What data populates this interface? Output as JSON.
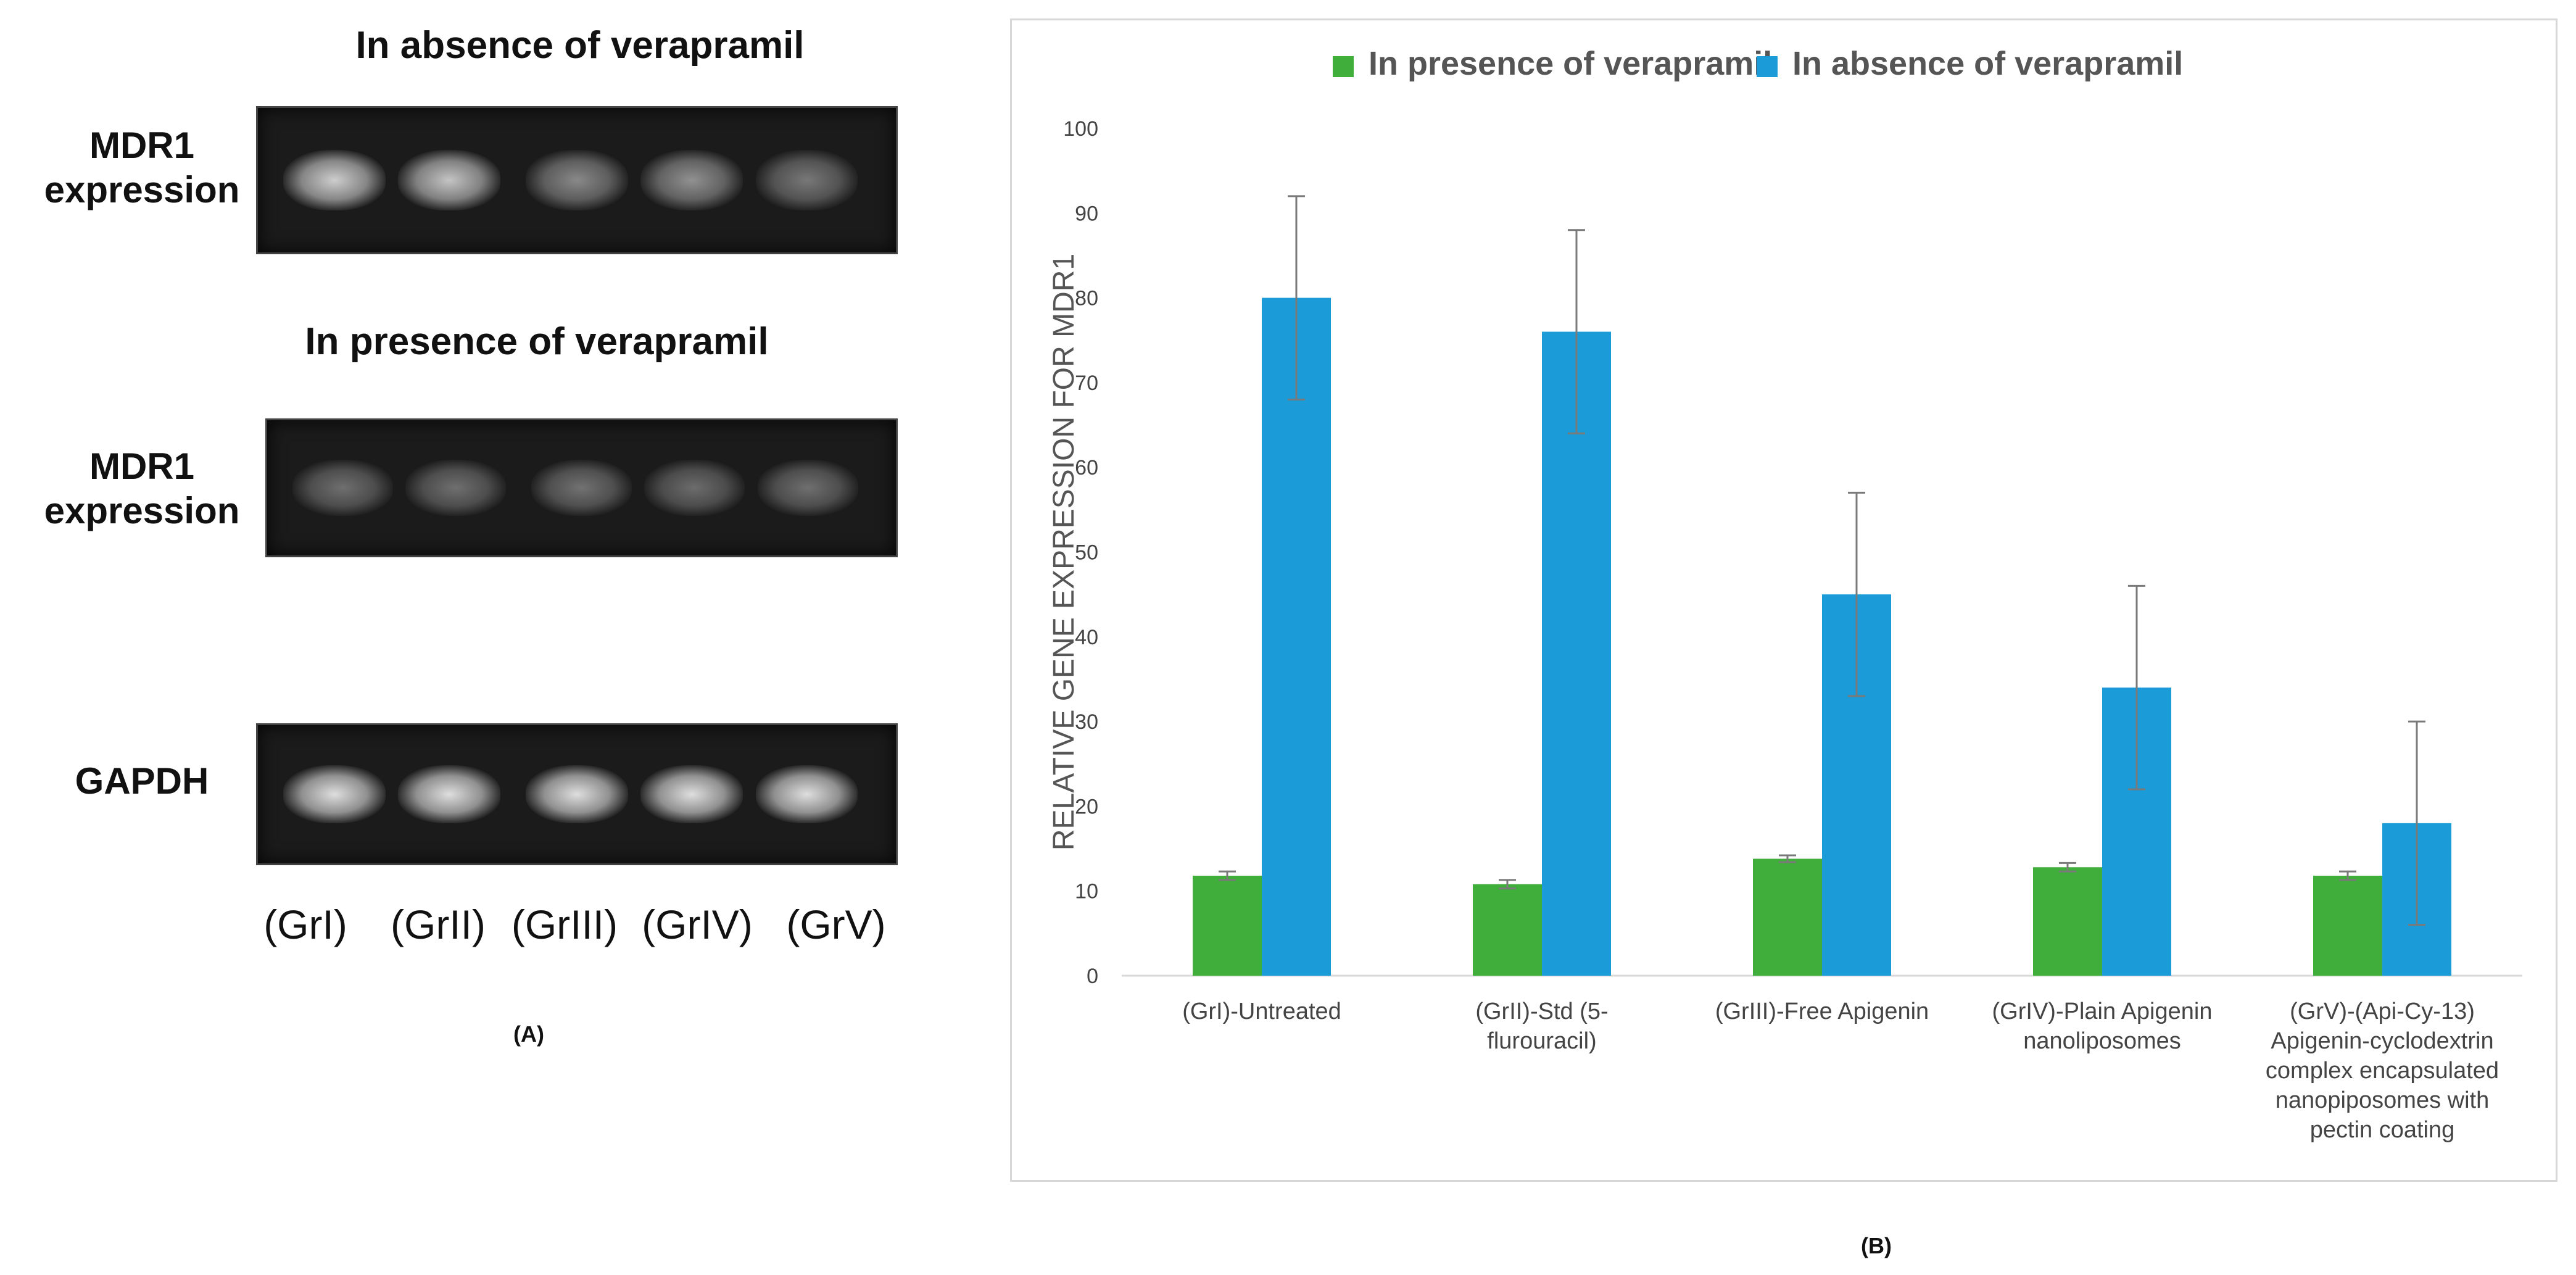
{
  "panel_a": {
    "caption": "(A)",
    "gels": [
      {
        "title": "In absence of verapramil",
        "row_label_line1": "MDR1",
        "row_label_line2": "expression",
        "band_intensity": [
          0.85,
          0.8,
          0.45,
          0.5,
          0.35
        ]
      },
      {
        "title": "In presence of verapramil",
        "row_label_line1": "MDR1",
        "row_label_line2": "expression",
        "band_intensity": [
          0.3,
          0.3,
          0.32,
          0.28,
          0.3
        ]
      },
      {
        "title": "",
        "row_label_line1": "GAPDH",
        "row_label_line2": "",
        "band_intensity": [
          0.95,
          0.95,
          0.95,
          0.95,
          0.95
        ]
      }
    ],
    "lanes": [
      "(GrI)",
      "(GrII)",
      "(GrIII)",
      "(GrIV)",
      "(GrV)"
    ]
  },
  "panel_b": {
    "caption": "(B)"
  },
  "chart_data": {
    "type": "bar",
    "title": "",
    "xlabel": "",
    "ylabel": "RELATIVE GENE EXPRESSION FOR MDR1",
    "ylim": [
      0,
      100
    ],
    "yticks": [
      0,
      10,
      20,
      30,
      40,
      50,
      60,
      70,
      80,
      90,
      100
    ],
    "grid": false,
    "legend_position": "top",
    "categories": [
      [
        "(GrI)-Untreated"
      ],
      [
        "(GrII)-Std (5-",
        "flurouracil)"
      ],
      [
        "(GrIII)-Free Apigenin"
      ],
      [
        "(GrIV)-Plain Apigenin",
        "nanoliposomes"
      ],
      [
        "(GrV)-(Api-Cy-13)",
        "Apigenin-cyclodextrin",
        "complex encapsulated",
        "nanopiposomes with",
        "pectin coating"
      ]
    ],
    "series": [
      {
        "name": "In presence of verapramil",
        "color": "#3fae3a",
        "values": [
          11.8,
          10.8,
          13.8,
          12.8,
          11.8
        ],
        "errors": [
          0.5,
          0.5,
          0.4,
          0.5,
          0.5
        ]
      },
      {
        "name": "In absence of verapramil",
        "color": "#1b9bd8",
        "values": [
          80,
          76,
          45,
          34,
          18
        ],
        "errors": [
          12,
          12,
          12,
          12,
          12
        ]
      }
    ]
  }
}
